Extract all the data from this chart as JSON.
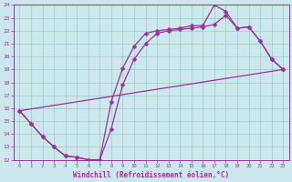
{
  "xlabel": "Windchill (Refroidissement éolien,°C)",
  "bg_color": "#cce8ee",
  "line_color": "#993399",
  "grid_color": "#99ccbb",
  "xlim": [
    -0.5,
    23.5
  ],
  "ylim": [
    12,
    24
  ],
  "xticks": [
    0,
    1,
    2,
    3,
    4,
    5,
    6,
    7,
    8,
    9,
    10,
    11,
    12,
    13,
    14,
    15,
    16,
    17,
    18,
    19,
    20,
    21,
    22,
    23
  ],
  "yticks": [
    12,
    13,
    14,
    15,
    16,
    17,
    18,
    19,
    20,
    21,
    22,
    23,
    24
  ],
  "series_main": [
    [
      0,
      15.8
    ],
    [
      1,
      14.8
    ],
    [
      2,
      13.8
    ],
    [
      3,
      13.0
    ],
    [
      4,
      12.3
    ],
    [
      5,
      12.2
    ],
    [
      6,
      12.0
    ],
    [
      7,
      12.0
    ],
    [
      8,
      16.5
    ],
    [
      9,
      19.1
    ],
    [
      10,
      20.8
    ],
    [
      11,
      21.8
    ],
    [
      12,
      22.0
    ],
    [
      13,
      22.1
    ],
    [
      14,
      22.2
    ],
    [
      15,
      22.4
    ],
    [
      16,
      22.4
    ],
    [
      17,
      24.0
    ],
    [
      18,
      23.5
    ],
    [
      19,
      22.2
    ],
    [
      20,
      22.3
    ],
    [
      21,
      21.2
    ],
    [
      22,
      19.8
    ],
    [
      23,
      19.0
    ]
  ],
  "series_inner": [
    [
      0,
      15.8
    ],
    [
      1,
      14.8
    ],
    [
      2,
      13.8
    ],
    [
      3,
      13.0
    ],
    [
      4,
      12.3
    ],
    [
      5,
      12.2
    ],
    [
      6,
      12.0
    ],
    [
      7,
      12.0
    ],
    [
      8,
      14.4
    ],
    [
      9,
      17.8
    ],
    [
      10,
      19.8
    ],
    [
      11,
      21.0
    ],
    [
      12,
      21.8
    ],
    [
      13,
      22.0
    ],
    [
      14,
      22.1
    ],
    [
      15,
      22.2
    ],
    [
      16,
      22.3
    ],
    [
      17,
      22.5
    ],
    [
      18,
      23.2
    ],
    [
      19,
      22.2
    ],
    [
      20,
      22.3
    ],
    [
      21,
      21.2
    ],
    [
      22,
      19.8
    ],
    [
      23,
      19.0
    ]
  ],
  "series_diagonal": [
    [
      0,
      15.8
    ],
    [
      23,
      19.0
    ]
  ],
  "line_width": 0.9,
  "marker": "D",
  "marker_size": 2.5
}
